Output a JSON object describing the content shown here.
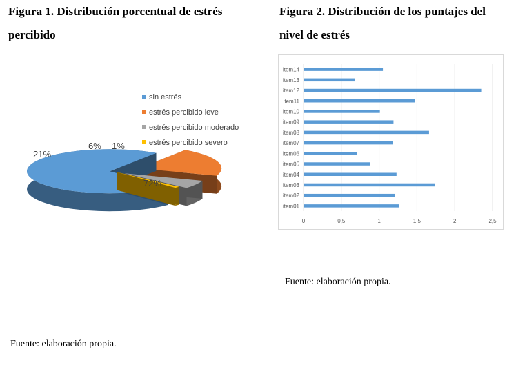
{
  "figure1": {
    "title": "Figura 1. Distribución porcentual de estrés percibido",
    "source": "Fuente: elaboración propia."
  },
  "figure2": {
    "title": "Figura 2. Distribución de los puntajes del nivel de estrés",
    "source": "Fuente: elaboración propia."
  },
  "chart_data": [
    {
      "type": "pie",
      "title": "",
      "categories": [
        "sin estrés",
        "estrés percibido leve",
        "estrés percibido moderado",
        "estrés percibido  severo"
      ],
      "values": [
        72,
        21,
        6,
        1
      ],
      "labels": [
        "72%",
        "21%",
        "6%",
        "1%"
      ],
      "colors": [
        "#5b9bd5",
        "#ed7d31",
        "#a5a5a5",
        "#ffc000"
      ],
      "legend": "right",
      "style": "3d-exploded"
    },
    {
      "type": "bar",
      "orientation": "horizontal",
      "title": "",
      "categories": [
        "item01",
        "item02",
        "item03",
        "item04",
        "item05",
        "item06",
        "item07",
        "item08",
        "item09",
        "item10",
        "item11",
        "item12",
        "item13",
        "item14"
      ],
      "values": [
        1.26,
        1.21,
        1.74,
        1.23,
        0.88,
        0.71,
        1.18,
        1.66,
        1.19,
        1.01,
        1.47,
        2.35,
        0.68,
        1.05
      ],
      "xticks": [
        "0",
        "0,5",
        "1",
        "1,5",
        "2",
        "2,5"
      ],
      "xlim": [
        0,
        2.5
      ],
      "grid": true,
      "color": "#5b9bd5"
    }
  ]
}
